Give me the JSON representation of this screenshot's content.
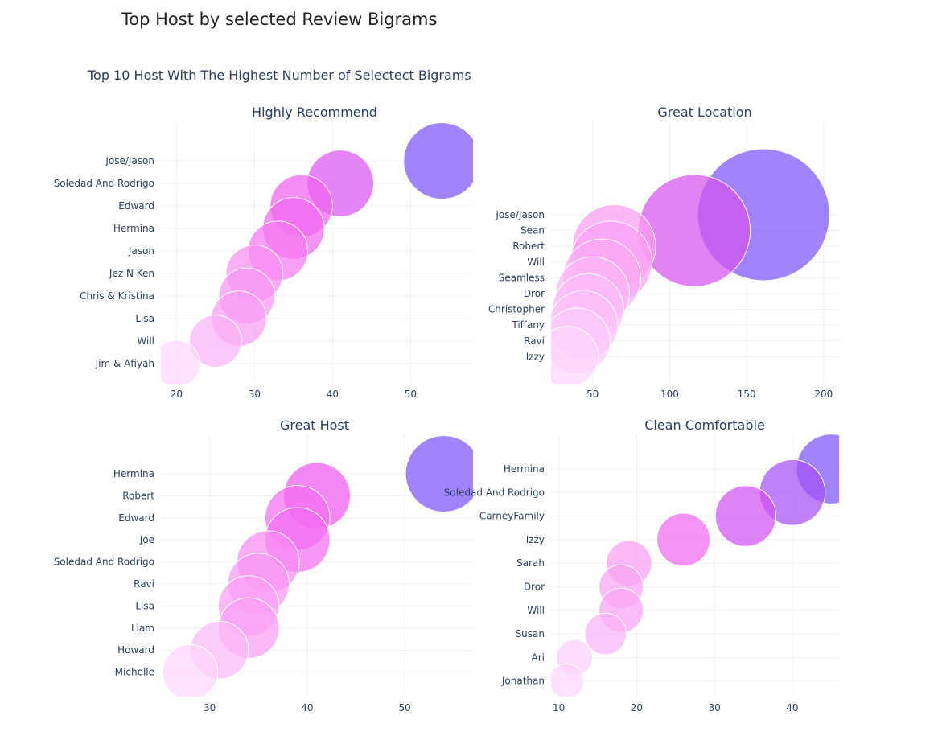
{
  "page": {
    "title": "Top Host by selected Review Bigrams"
  },
  "chart_data": {
    "type": "scatter",
    "variant": "bubble",
    "title": "Top 10 Host With The Highest Number of Selectect Bigrams",
    "color_scale": [
      "#fdd5fb",
      "#f99af3",
      "#ef5af0",
      "#c44ef1",
      "#7a55fb"
    ],
    "grid": true,
    "panels": [
      {
        "subtitle": "Highly Recommend",
        "xticks": [
          20,
          30,
          40,
          50
        ],
        "xlim": [
          18,
          58
        ],
        "hosts": [
          "Jose/Jason",
          "Soledad And Rodrigo",
          "Edward",
          "Hermina",
          "Jason",
          "Jez N Ken",
          "Chris & Kristina",
          "Lisa",
          "Will",
          "Jim & Afiyah"
        ],
        "values": [
          54,
          41,
          36,
          35,
          33,
          30,
          29,
          28,
          25,
          20
        ]
      },
      {
        "subtitle": "Great Location",
        "xticks": [
          50,
          100,
          150,
          200
        ],
        "xlim": [
          23,
          210
        ],
        "hosts": [
          "Jose/Jason",
          "Sean",
          "Robert",
          "Will",
          "Seamless",
          "Dror",
          "Christopher",
          "Tiffany",
          "Ravi",
          "Izzy"
        ],
        "values": [
          161,
          116,
          64,
          62,
          56,
          50,
          47,
          44,
          40,
          34
        ]
      },
      {
        "subtitle": "Great Host",
        "xticks": [
          30,
          40,
          50
        ],
        "xlim": [
          25,
          57
        ],
        "hosts": [
          "Hermina",
          "Robert",
          "Edward",
          "Joe",
          "Soledad And Rodrigo",
          "Ravi",
          "Lisa",
          "Liam",
          "Howard",
          "Michelle"
        ],
        "values": [
          54,
          41,
          39,
          39,
          36,
          35,
          34,
          34,
          31,
          28
        ]
      },
      {
        "subtitle": "Clean Comfortable",
        "xticks": [
          10,
          20,
          30,
          40
        ],
        "xlim": [
          9,
          46
        ],
        "hosts": [
          "Hermina",
          "Soledad And Rodrigo",
          "CarneyFamily",
          "Izzy",
          "Sarah",
          "Dror",
          "Will",
          "Susan",
          "Ari",
          "Jonathan"
        ],
        "values": [
          45,
          40,
          34,
          26,
          19,
          18,
          18,
          16,
          12,
          11
        ]
      }
    ]
  }
}
